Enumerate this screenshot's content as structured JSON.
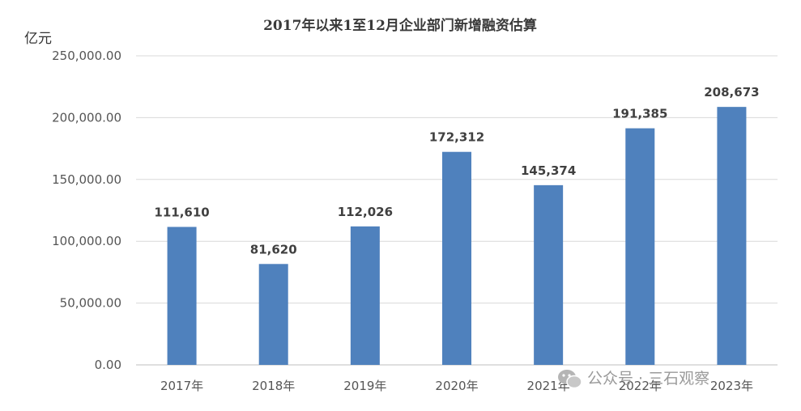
{
  "chart_data": {
    "type": "bar",
    "title": "2017年以来1至12月企业部门新增融资估算",
    "unit_label": "亿元",
    "categories": [
      "2017年",
      "2018年",
      "2019年",
      "2020年",
      "2021年",
      "2022年",
      "2023年"
    ],
    "values": [
      111610,
      81620,
      112026,
      172312,
      145374,
      191385,
      208673
    ],
    "data_labels": [
      "111,610",
      "81,620",
      "112,026",
      "172,312",
      "145,374",
      "191,385",
      "208,673"
    ],
    "ylim": [
      0,
      250000
    ],
    "yticks": [
      0,
      50000,
      100000,
      150000,
      200000,
      250000
    ],
    "ytick_labels": [
      "0.00",
      "50,000.00",
      "100,000.00",
      "150,000.00",
      "200,000.00",
      "250,000.00"
    ],
    "grid": true,
    "bar_color": "#4f81bd"
  },
  "watermark": {
    "text": "公众号 · 三石观察",
    "icon": "wechat-icon"
  }
}
